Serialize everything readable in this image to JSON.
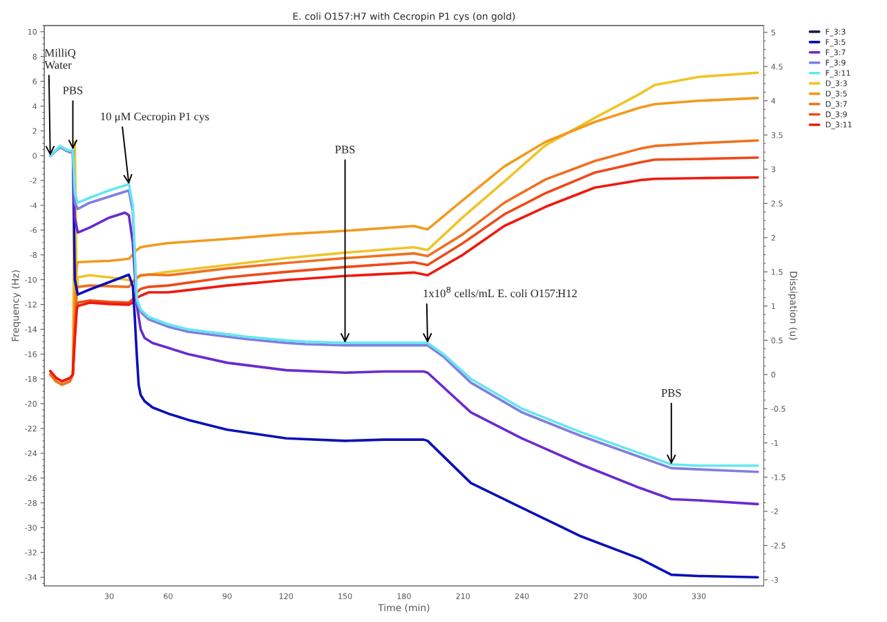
{
  "chart_data": {
    "type": "line",
    "title": "E. coli O157:H7 with Cecropin P1 cys (on gold)",
    "xlabel": "Time (min)",
    "ylabel": "Frequency (Hz)",
    "y2label": "Dissipation (u)",
    "xlim": [
      -3,
      363
    ],
    "xticks": [
      30,
      60,
      90,
      120,
      150,
      180,
      210,
      240,
      270,
      300,
      330
    ],
    "ylim": [
      -34.7,
      10.5
    ],
    "yticks": [
      -34,
      -32,
      -30,
      -28,
      -26,
      -24,
      -22,
      -20,
      -18,
      -16,
      -14,
      -12,
      -10,
      -8,
      -6,
      -4,
      -2,
      0,
      2,
      4,
      6,
      8,
      10
    ],
    "y2lim": [
      -3.09,
      5.1
    ],
    "y2ticks": [
      -3,
      -2.5,
      -2,
      -1.5,
      -1,
      -0.5,
      0,
      0.5,
      1,
      1.5,
      2,
      2.5,
      3,
      3.5,
      4,
      4.5,
      5
    ],
    "grid": false,
    "legend": "right",
    "line_style": "solid",
    "marker": "none",
    "series": [
      {
        "name": "F_3:3",
        "color": "#202048"
      },
      {
        "name": "F_3:5",
        "color": "#0a10b8",
        "x": [
          0,
          5,
          10,
          11.5,
          12.5,
          14,
          20,
          30,
          40,
          42,
          43,
          44,
          45,
          46,
          48,
          52,
          60,
          70,
          90,
          120,
          150,
          170,
          190,
          192,
          214,
          240,
          270,
          300,
          316,
          330,
          360
        ],
        "values": [
          0,
          0.7,
          0.3,
          0.4,
          -10,
          -11.2,
          -10.8,
          -10.2,
          -9.6,
          -10.5,
          -13,
          -16,
          -18.5,
          -19.3,
          -19.8,
          -20.3,
          -20.8,
          -21.3,
          -22.1,
          -22.8,
          -23.0,
          -22.9,
          -22.9,
          -23.0,
          -26.4,
          -28.4,
          -30.7,
          -32.5,
          -33.8,
          -33.9,
          -34.0
        ]
      },
      {
        "name": "F_3:7",
        "color": "#6a2ad0",
        "x": [
          0,
          5,
          10,
          11.5,
          12.5,
          14,
          20,
          30,
          38,
          40,
          42,
          44,
          46,
          48,
          52,
          60,
          70,
          90,
          120,
          150,
          170,
          190,
          192,
          214,
          240,
          270,
          300,
          316,
          330,
          360
        ],
        "values": [
          0,
          0.7,
          0.3,
          0.4,
          -5,
          -6.2,
          -5.8,
          -5.0,
          -4.6,
          -4.8,
          -7,
          -12,
          -14,
          -14.7,
          -15.1,
          -15.5,
          -16,
          -16.7,
          -17.3,
          -17.5,
          -17.4,
          -17.4,
          -17.5,
          -20.7,
          -22.8,
          -24.9,
          -26.8,
          -27.7,
          -27.8,
          -28.1
        ]
      },
      {
        "name": "F_3:9",
        "color": "#7f7fe0",
        "x": [
          0,
          2,
          5,
          8,
          10,
          11.5,
          12.5,
          14,
          20,
          30,
          40,
          42,
          44,
          46,
          50,
          60,
          70,
          90,
          100,
          120,
          130,
          150,
          170,
          190,
          192,
          200,
          214,
          240,
          270,
          300,
          316,
          330,
          345,
          360
        ],
        "values": [
          0,
          0.3,
          0.7,
          0.4,
          0.3,
          0.4,
          -3.8,
          -4.3,
          -3.8,
          -3.3,
          -2.8,
          -4.5,
          -11.8,
          -12.6,
          -13.2,
          -13.8,
          -14.2,
          -14.6,
          -14.8,
          -15.1,
          -15.2,
          -15.3,
          -15.3,
          -15.3,
          -15.3,
          -16.2,
          -18.3,
          -20.7,
          -22.6,
          -24.3,
          -25.2,
          -25.3,
          -25.4,
          -25.5
        ]
      },
      {
        "name": "F_3:11",
        "color": "#66e6f0",
        "x": [
          0,
          2,
          5,
          8,
          10,
          11.5,
          12.5,
          14,
          20,
          30,
          40,
          42,
          44,
          46,
          50,
          60,
          70,
          90,
          100,
          120,
          130,
          150,
          170,
          190,
          192,
          200,
          214,
          240,
          270,
          300,
          316,
          330,
          345,
          360
        ],
        "values": [
          0,
          0.3,
          0.8,
          0.5,
          0.4,
          0.5,
          -3,
          -3.8,
          -3.4,
          -2.8,
          -2.3,
          -4,
          -11.5,
          -12.4,
          -13.0,
          -13.6,
          -14.0,
          -14.4,
          -14.6,
          -14.9,
          -15.0,
          -15.1,
          -15.1,
          -15.1,
          -15.1,
          -16,
          -18.0,
          -20.4,
          -22.3,
          -24.0,
          -24.9,
          -25.0,
          -25.0,
          -25.0
        ]
      },
      {
        "name": "D_3:3",
        "color": "#f0c428",
        "axis": "y2",
        "x": [
          0,
          3,
          6,
          10,
          11.5,
          12.5,
          13.5,
          14,
          20,
          30,
          40,
          42,
          44,
          46,
          50,
          60,
          90,
          120,
          150,
          185,
          192,
          210,
          231,
          252,
          277,
          300,
          307.5,
          330,
          360
        ],
        "values": [
          0.0,
          -0.1,
          -0.15,
          -0.1,
          0.0,
          3.4,
          1.1,
          1.42,
          1.45,
          1.42,
          1.38,
          1.35,
          1.4,
          1.44,
          1.46,
          1.5,
          1.6,
          1.7,
          1.78,
          1.86,
          1.82,
          2.3,
          2.82,
          3.35,
          3.75,
          4.1,
          4.23,
          4.35,
          4.41
        ]
      },
      {
        "name": "D_3:5",
        "color": "#f29a1e",
        "axis": "y2",
        "x": [
          0,
          3,
          6,
          10,
          11.5,
          12.5,
          13.5,
          14,
          20,
          30,
          40,
          42,
          44,
          46,
          50,
          60,
          90,
          120,
          150,
          185,
          192,
          210,
          231,
          252,
          277,
          300,
          307.5,
          330,
          360
        ],
        "values": [
          0.0,
          -0.1,
          -0.15,
          -0.1,
          0.0,
          1.2,
          1.6,
          1.64,
          1.65,
          1.66,
          1.69,
          1.75,
          1.82,
          1.86,
          1.88,
          1.92,
          1.98,
          2.05,
          2.1,
          2.17,
          2.12,
          2.55,
          3.04,
          3.4,
          3.69,
          3.9,
          3.95,
          4.0,
          4.04
        ]
      },
      {
        "name": "D_3:7",
        "color": "#f07020",
        "axis": "y2",
        "x": [
          0,
          3,
          6,
          10,
          11.5,
          12.5,
          13.5,
          14,
          20,
          30,
          40,
          42,
          44,
          46,
          50,
          60,
          90,
          120,
          150,
          185,
          192,
          210,
          231,
          252,
          277,
          300,
          307.5,
          330,
          360
        ],
        "values": [
          0.0,
          -0.1,
          -0.15,
          -0.1,
          0.0,
          0.8,
          1.25,
          1.28,
          1.3,
          1.29,
          1.28,
          1.35,
          1.42,
          1.45,
          1.46,
          1.45,
          1.55,
          1.63,
          1.7,
          1.77,
          1.73,
          2.05,
          2.51,
          2.85,
          3.12,
          3.3,
          3.34,
          3.38,
          3.42
        ]
      },
      {
        "name": "D_3:9",
        "color": "#ee4a1a",
        "axis": "y2",
        "x": [
          0,
          3,
          6,
          10,
          11.5,
          12.5,
          13.5,
          14,
          20,
          30,
          40,
          42,
          44,
          46,
          50,
          60,
          90,
          120,
          150,
          185,
          192,
          210,
          231,
          252,
          277,
          300,
          307.5,
          330,
          360
        ],
        "values": [
          0.05,
          -0.05,
          -0.1,
          -0.05,
          0.0,
          0.6,
          1.0,
          1.05,
          1.08,
          1.06,
          1.05,
          1.1,
          1.2,
          1.25,
          1.28,
          1.3,
          1.42,
          1.5,
          1.57,
          1.64,
          1.6,
          1.92,
          2.34,
          2.65,
          2.95,
          3.1,
          3.14,
          3.15,
          3.17
        ]
      },
      {
        "name": "D_3:11",
        "color": "#ee1a10",
        "axis": "y2",
        "x": [
          0,
          3,
          6,
          10,
          11.5,
          12.5,
          13.5,
          14,
          20,
          30,
          40,
          42,
          44,
          46,
          50,
          60,
          90,
          120,
          150,
          185,
          192,
          210,
          231,
          252,
          277,
          300,
          307.5,
          330,
          360
        ],
        "values": [
          0.05,
          -0.05,
          -0.1,
          -0.05,
          0.0,
          0.5,
          0.95,
          1.0,
          1.05,
          1.03,
          1.02,
          1.05,
          1.12,
          1.15,
          1.2,
          1.2,
          1.3,
          1.38,
          1.44,
          1.49,
          1.45,
          1.75,
          2.17,
          2.45,
          2.73,
          2.84,
          2.86,
          2.87,
          2.88
        ]
      }
    ],
    "annotations": [
      {
        "text": "MilliQ\nWater",
        "x": 0,
        "y": 0
      },
      {
        "text": "PBS",
        "x": 11.5,
        "y": 0.5
      },
      {
        "text": "10 μM Cecropin P1 cys",
        "x": 40,
        "y": -2.3
      },
      {
        "text": "PBS",
        "x": 150,
        "y": -15.1
      },
      {
        "text": "1x10$^{8}$ cells/mL E. coli O157:H12",
        "x": 192,
        "y": -15.1
      },
      {
        "text": "PBS",
        "x": 316,
        "y": -24.9
      }
    ]
  }
}
